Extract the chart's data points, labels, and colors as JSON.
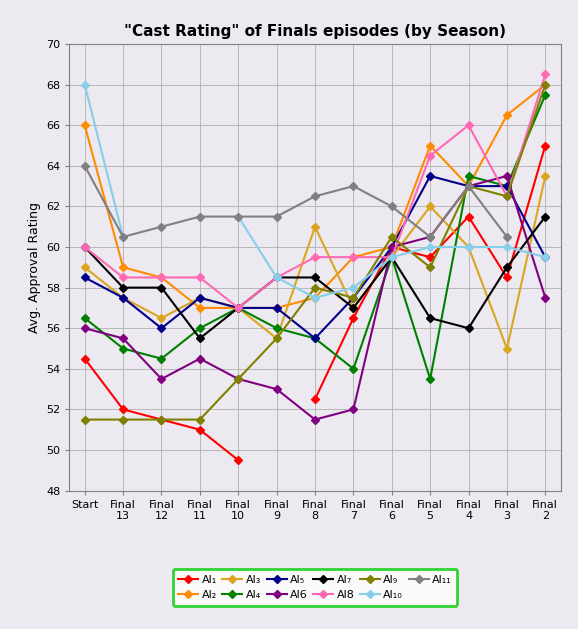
{
  "title": "\"Cast Rating\" of Finals episodes (by Season)",
  "ylabel": "Avg. Approval Rating",
  "x_labels": [
    "Start",
    "Final\n13",
    "Final\n12",
    "Final\n11",
    "Final\n10",
    "Final\n9",
    "Final\n8",
    "Final\n7",
    "Final\n6",
    "Final\n5",
    "Final\n4",
    "Final\n3",
    "Final\n2"
  ],
  "ylim": [
    48,
    70
  ],
  "yticks": [
    48,
    50,
    52,
    54,
    56,
    58,
    60,
    62,
    64,
    66,
    68,
    70
  ],
  "background_color": "#ede9f0",
  "series": [
    {
      "label": "Al₁",
      "color": "#ff0000",
      "data": [
        54.5,
        52.0,
        51.5,
        51.0,
        49.5,
        null,
        52.5,
        56.5,
        60.0,
        59.5,
        61.5,
        58.5,
        65.0
      ]
    },
    {
      "label": "Al₂",
      "color": "#ff8c00",
      "data": [
        66.0,
        59.0,
        58.5,
        57.0,
        57.0,
        57.0,
        57.5,
        59.5,
        60.0,
        65.0,
        63.0,
        66.5,
        68.0
      ]
    },
    {
      "label": "Al₃",
      "color": "#daa520",
      "data": [
        59.0,
        57.5,
        56.5,
        57.5,
        57.0,
        55.5,
        61.0,
        57.0,
        59.5,
        62.0,
        60.0,
        55.0,
        63.5
      ]
    },
    {
      "label": "Al₄",
      "color": "#008000",
      "data": [
        56.5,
        55.0,
        54.5,
        56.0,
        57.0,
        56.0,
        55.5,
        54.0,
        59.5,
        53.5,
        63.5,
        63.0,
        67.5
      ]
    },
    {
      "label": "Al₅",
      "color": "#00008b",
      "data": [
        58.5,
        57.5,
        56.0,
        57.5,
        57.0,
        57.0,
        55.5,
        57.5,
        60.0,
        63.5,
        63.0,
        63.0,
        59.5
      ]
    },
    {
      "label": "Al6",
      "color": "#800080",
      "data": [
        56.0,
        55.5,
        53.5,
        54.5,
        53.5,
        53.0,
        51.5,
        52.0,
        60.0,
        60.5,
        63.0,
        63.5,
        57.5
      ]
    },
    {
      "label": "Al₇",
      "color": "#000000",
      "data": [
        60.0,
        58.0,
        58.0,
        55.5,
        57.0,
        58.5,
        58.5,
        57.0,
        59.5,
        56.5,
        56.0,
        59.0,
        61.5
      ]
    },
    {
      "label": "Al8",
      "color": "#ff69b4",
      "data": [
        60.0,
        58.5,
        58.5,
        58.5,
        57.0,
        58.5,
        59.5,
        59.5,
        59.5,
        64.5,
        66.0,
        62.5,
        68.5
      ]
    },
    {
      "label": "Al₉",
      "color": "#808000",
      "data": [
        51.5,
        51.5,
        51.5,
        51.5,
        53.5,
        55.5,
        58.0,
        57.5,
        60.5,
        59.0,
        63.0,
        62.5,
        68.0
      ]
    },
    {
      "label": "Al₁₀",
      "color": "#87ceeb",
      "data": [
        68.0,
        60.5,
        null,
        null,
        61.5,
        58.5,
        57.5,
        58.0,
        59.5,
        60.0,
        60.0,
        60.0,
        59.5
      ]
    },
    {
      "label": "Al₁₁",
      "color": "#808080",
      "data": [
        64.0,
        60.5,
        61.0,
        61.5,
        61.5,
        61.5,
        62.5,
        63.0,
        62.0,
        60.5,
        63.0,
        60.5,
        null
      ]
    }
  ]
}
